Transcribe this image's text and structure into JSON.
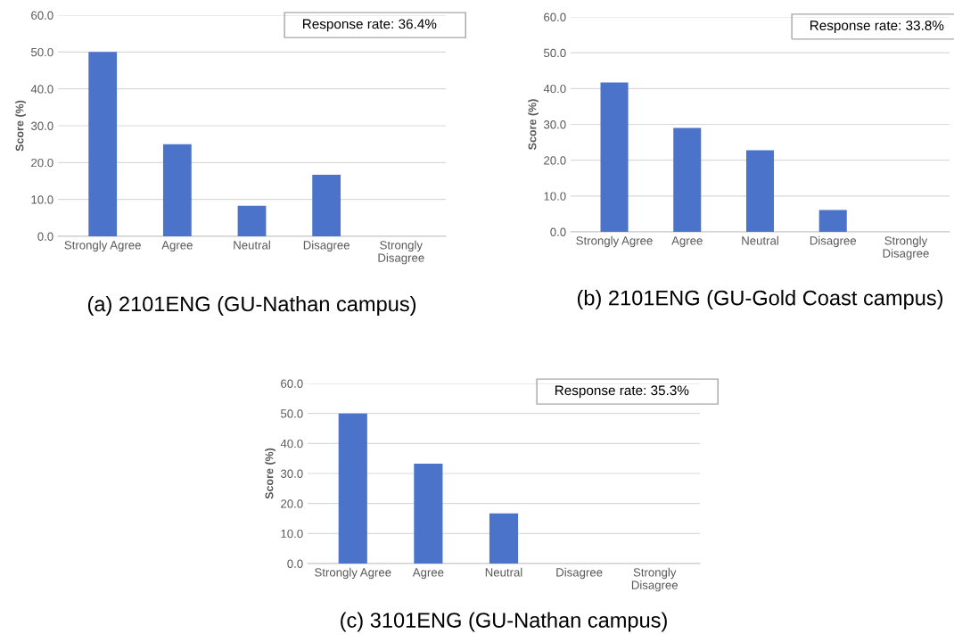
{
  "chart_data": [
    {
      "type": "bar",
      "title": "(a) 2101ENG (GU-Nathan campus)",
      "ylabel": "Score (%)",
      "categories": [
        "Strongly Agree",
        "Agree",
        "Neutral",
        "Disagree",
        "Strongly\nDisagree"
      ],
      "values": [
        50.0,
        25.0,
        8.3,
        16.7,
        0.0
      ],
      "color": "#4a73c9",
      "ylim": [
        0,
        60
      ],
      "yticks": [
        {
          "value": 0,
          "label": "0.0"
        },
        {
          "value": 10,
          "label": "10.0"
        },
        {
          "value": 20,
          "label": "20.0"
        },
        {
          "value": 30,
          "label": "30.0"
        },
        {
          "value": 40,
          "label": "40.0"
        },
        {
          "value": 50,
          "label": "50.0"
        },
        {
          "value": 60,
          "label": "60.0"
        }
      ],
      "grid": "y",
      "annotations": [
        "Response rate: 36.4%"
      ]
    },
    {
      "type": "bar",
      "title": "(b) 2101ENG (GU-Gold Coast campus)",
      "ylabel": "Score (%)",
      "categories": [
        "Strongly Agree",
        "Agree",
        "Neutral",
        "Disagree",
        "Strongly\nDisagree"
      ],
      "values": [
        41.7,
        29.0,
        22.8,
        6.1,
        0.0
      ],
      "color": "#4a73c9",
      "ylim": [
        0,
        60
      ],
      "yticks": [
        {
          "value": 0,
          "label": "0.0"
        },
        {
          "value": 10,
          "label": "10.0"
        },
        {
          "value": 20,
          "label": "20.0"
        },
        {
          "value": 30,
          "label": "30.0"
        },
        {
          "value": 40,
          "label": "40.0"
        },
        {
          "value": 50,
          "label": "50.0"
        },
        {
          "value": 60,
          "label": "60.0"
        }
      ],
      "grid": "y",
      "annotations": [
        "Response rate: 33.8%"
      ]
    },
    {
      "type": "bar",
      "title": "(c) 3101ENG (GU-Nathan campus)",
      "ylabel": "Score (%)",
      "categories": [
        "Strongly Agree",
        "Agree",
        "Neutral",
        "Disagree",
        "Strongly\nDisagree"
      ],
      "values": [
        50.0,
        33.3,
        16.7,
        0.0,
        0.0
      ],
      "color": "#4a73c9",
      "ylim": [
        0,
        60
      ],
      "yticks": [
        {
          "value": 0,
          "label": "0.0"
        },
        {
          "value": 10,
          "label": "10.0"
        },
        {
          "value": 20,
          "label": "20.0"
        },
        {
          "value": 30,
          "label": "30.0"
        },
        {
          "value": 40,
          "label": "40.0"
        },
        {
          "value": 50,
          "label": "50.0"
        },
        {
          "value": 60,
          "label": "60.0"
        }
      ],
      "grid": "y",
      "annotations": [
        "Response rate: 35.3%"
      ]
    }
  ]
}
